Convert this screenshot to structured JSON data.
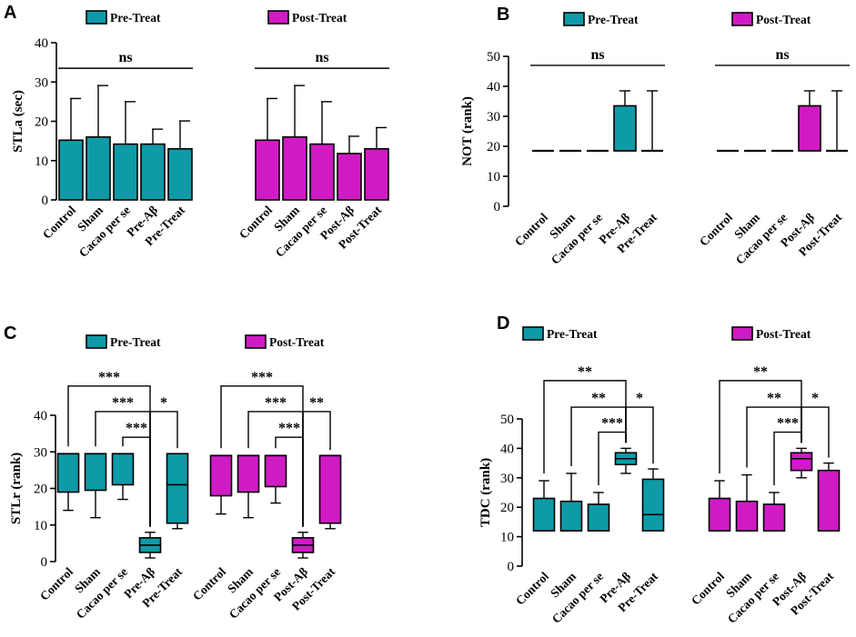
{
  "figure": {
    "colors": {
      "pre": "#0e9aa7",
      "post": "#d01bc4",
      "line": "#000000"
    },
    "legend": {
      "pre_label": "Pre-Treat",
      "post_label": "Post-Treat"
    }
  },
  "chart_data": [
    {
      "panel": "A",
      "type": "bar",
      "ylabel": "STLa (sec)",
      "ylim": [
        0,
        40
      ],
      "yticks": [
        0,
        10,
        20,
        30,
        40
      ],
      "legend": [
        "Pre-Treat",
        "Post-Treat"
      ],
      "groups": [
        {
          "series": "Pre-Treat",
          "categories": [
            "Control",
            "Sham",
            "Cacao per se",
            "Pre-Aβ",
            "Pre-Treat"
          ],
          "values": [
            15.2,
            16.0,
            14.2,
            14.2,
            13.0
          ],
          "error_upper": [
            25.8,
            29.1,
            25.0,
            18.0,
            20.1
          ]
        },
        {
          "series": "Post-Treat",
          "categories": [
            "Control",
            "Sham",
            "Cacao per se",
            "Post-Aβ",
            "Post-Treat"
          ],
          "values": [
            15.2,
            16.0,
            14.2,
            11.8,
            13.0
          ],
          "error_upper": [
            25.8,
            29.1,
            25.0,
            16.2,
            18.4
          ]
        }
      ],
      "annotations": [
        {
          "group": 0,
          "text": "ns",
          "span": [
            0,
            4
          ],
          "y": 33.5
        },
        {
          "group": 1,
          "text": "ns",
          "span": [
            0,
            4
          ],
          "y": 33.5
        }
      ]
    },
    {
      "panel": "B",
      "type": "boxplot",
      "ylabel": "NOT (rank)",
      "ylim": [
        0,
        50
      ],
      "yticks": [
        0,
        10,
        20,
        30,
        40,
        50
      ],
      "legend": [
        "Pre-Treat",
        "Post-Treat"
      ],
      "groups": [
        {
          "series": "Pre-Treat",
          "categories": [
            "Control",
            "Sham",
            "Cacao per se",
            "Pre-Aβ",
            "Pre-Treat"
          ],
          "boxes": [
            {
              "min": 18.5,
              "q1": 18.5,
              "median": 18.5,
              "q3": 18.5,
              "max": 18.5
            },
            {
              "min": 18.5,
              "q1": 18.5,
              "median": 18.5,
              "q3": 18.5,
              "max": 18.5
            },
            {
              "min": 18.5,
              "q1": 18.5,
              "median": 18.5,
              "q3": 18.5,
              "max": 18.5
            },
            {
              "min": 18.5,
              "q1": 18.5,
              "median": 18.5,
              "q3": 33.5,
              "max": 38.5
            },
            {
              "min": 18.5,
              "q1": 18.5,
              "median": 18.5,
              "q3": 18.5,
              "max": 38.5
            }
          ]
        },
        {
          "series": "Post-Treat",
          "categories": [
            "Control",
            "Sham",
            "Cacao per se",
            "Post-Aβ",
            "Post-Treat"
          ],
          "boxes": [
            {
              "min": 18.5,
              "q1": 18.5,
              "median": 18.5,
              "q3": 18.5,
              "max": 18.5
            },
            {
              "min": 18.5,
              "q1": 18.5,
              "median": 18.5,
              "q3": 18.5,
              "max": 18.5
            },
            {
              "min": 18.5,
              "q1": 18.5,
              "median": 18.5,
              "q3": 18.5,
              "max": 18.5
            },
            {
              "min": 18.5,
              "q1": 18.5,
              "median": 18.5,
              "q3": 33.5,
              "max": 38.5
            },
            {
              "min": 18.5,
              "q1": 18.5,
              "median": 18.5,
              "q3": 18.5,
              "max": 38.5
            }
          ]
        }
      ],
      "annotations": [
        {
          "group": 0,
          "text": "ns",
          "span": [
            0,
            4
          ],
          "y": 47
        },
        {
          "group": 1,
          "text": "ns",
          "span": [
            0,
            4
          ],
          "y": 47
        }
      ]
    },
    {
      "panel": "C",
      "type": "boxplot",
      "ylabel": "STLr (rank)",
      "ylim": [
        0,
        40
      ],
      "yticks": [
        0,
        10,
        20,
        30,
        40
      ],
      "legend": [
        "Pre-Treat",
        "Post-Treat"
      ],
      "groups": [
        {
          "series": "Pre-Treat",
          "categories": [
            "Control",
            "Sham",
            "Cacao per se",
            "Pre-Aβ",
            "Pre-Treat"
          ],
          "boxes": [
            {
              "min": 14,
              "q1": 19,
              "median": 29.5,
              "q3": 29.5,
              "max": 29.5
            },
            {
              "min": 12,
              "q1": 19.5,
              "median": 29.5,
              "q3": 29.5,
              "max": 29.5
            },
            {
              "min": 17,
              "q1": 21,
              "median": 29.5,
              "q3": 29.5,
              "max": 29.5
            },
            {
              "min": 1,
              "q1": 2.5,
              "median": 4.5,
              "q3": 6.5,
              "max": 8
            },
            {
              "min": 9,
              "q1": 10.5,
              "median": 21,
              "q3": 29.5,
              "max": 29.5
            }
          ]
        },
        {
          "series": "Post-Treat",
          "categories": [
            "Control",
            "Sham",
            "Cacao per se",
            "Post-Aβ",
            "Post-Treat"
          ],
          "boxes": [
            {
              "min": 13,
              "q1": 18,
              "median": 29,
              "q3": 29,
              "max": 29
            },
            {
              "min": 12,
              "q1": 19,
              "median": 29,
              "q3": 29,
              "max": 29
            },
            {
              "min": 16,
              "q1": 20.5,
              "median": 29,
              "q3": 29,
              "max": 29
            },
            {
              "min": 1,
              "q1": 2.5,
              "median": 4.5,
              "q3": 6.5,
              "max": 8
            },
            {
              "min": 9,
              "q1": 10.5,
              "median": 29,
              "q3": 29,
              "max": 29
            }
          ]
        }
      ],
      "annotations": [
        {
          "group": 0,
          "text": "***",
          "span": [
            0,
            3
          ],
          "y": 48
        },
        {
          "group": 0,
          "text": "***",
          "span": [
            1,
            3
          ],
          "y": 41
        },
        {
          "group": 0,
          "text": "***",
          "span": [
            2,
            3
          ],
          "y": 34
        },
        {
          "group": 0,
          "text": "*",
          "span": [
            3,
            4
          ],
          "y": 41
        },
        {
          "group": 1,
          "text": "***",
          "span": [
            0,
            3
          ],
          "y": 48
        },
        {
          "group": 1,
          "text": "***",
          "span": [
            1,
            3
          ],
          "y": 41
        },
        {
          "group": 1,
          "text": "***",
          "span": [
            2,
            3
          ],
          "y": 34
        },
        {
          "group": 1,
          "text": "**",
          "span": [
            3,
            4
          ],
          "y": 41
        }
      ]
    },
    {
      "panel": "D",
      "type": "boxplot",
      "ylabel": "TDC (rank)",
      "ylim": [
        0,
        50
      ],
      "yticks": [
        0,
        10,
        20,
        30,
        40,
        50
      ],
      "legend": [
        "Pre-Treat",
        "Post-Treat"
      ],
      "groups": [
        {
          "series": "Pre-Treat",
          "categories": [
            "Control",
            "Sham",
            "Cacao per se",
            "Pre-Aβ",
            "Pre-Treat"
          ],
          "boxes": [
            {
              "min": 12,
              "q1": 12,
              "median": 12,
              "q3": 23,
              "max": 29
            },
            {
              "min": 12,
              "q1": 12,
              "median": 12,
              "q3": 22,
              "max": 31.5
            },
            {
              "min": 12,
              "q1": 12,
              "median": 12,
              "q3": 21,
              "max": 25
            },
            {
              "min": 31.5,
              "q1": 34.5,
              "median": 36.5,
              "q3": 38.5,
              "max": 40
            },
            {
              "min": 12,
              "q1": 12,
              "median": 17.5,
              "q3": 29.5,
              "max": 33
            }
          ]
        },
        {
          "series": "Post-Treat",
          "categories": [
            "Control",
            "Sham",
            "Cacao per se",
            "Post-Aβ",
            "Post-Treat"
          ],
          "boxes": [
            {
              "min": 12,
              "q1": 12,
              "median": 12,
              "q3": 23,
              "max": 29
            },
            {
              "min": 12,
              "q1": 12,
              "median": 12,
              "q3": 22,
              "max": 31
            },
            {
              "min": 12,
              "q1": 12,
              "median": 12,
              "q3": 21,
              "max": 25
            },
            {
              "min": 30,
              "q1": 32.5,
              "median": 36.5,
              "q3": 38.5,
              "max": 40
            },
            {
              "min": 12,
              "q1": 12,
              "median": 12,
              "q3": 32.5,
              "max": 35
            }
          ]
        }
      ],
      "annotations": [
        {
          "group": 0,
          "text": "**",
          "span": [
            0,
            3
          ],
          "y": 63
        },
        {
          "group": 0,
          "text": "**",
          "span": [
            1,
            3
          ],
          "y": 54
        },
        {
          "group": 0,
          "text": "***",
          "span": [
            2,
            3
          ],
          "y": 45.5
        },
        {
          "group": 0,
          "text": "*",
          "span": [
            3,
            4
          ],
          "y": 54
        },
        {
          "group": 1,
          "text": "**",
          "span": [
            0,
            3
          ],
          "y": 63
        },
        {
          "group": 1,
          "text": "**",
          "span": [
            1,
            3
          ],
          "y": 54
        },
        {
          "group": 1,
          "text": "***",
          "span": [
            2,
            3
          ],
          "y": 45.5
        },
        {
          "group": 1,
          "text": "*",
          "span": [
            3,
            4
          ],
          "y": 54
        }
      ]
    }
  ]
}
